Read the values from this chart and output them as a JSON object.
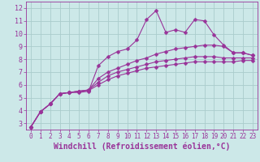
{
  "background_color": "#cce8e8",
  "grid_color": "#aacccc",
  "line_color": "#993399",
  "marker": "D",
  "marker_size": 2.5,
  "xlim": [
    -0.5,
    23.5
  ],
  "ylim": [
    2.5,
    12.5
  ],
  "yticks": [
    3,
    4,
    5,
    6,
    7,
    8,
    9,
    10,
    11,
    12
  ],
  "xticks": [
    0,
    1,
    2,
    3,
    4,
    5,
    6,
    7,
    8,
    9,
    10,
    11,
    12,
    13,
    14,
    15,
    16,
    17,
    18,
    19,
    20,
    21,
    22,
    23
  ],
  "xlabel": "Windchill (Refroidissement éolien,°C)",
  "series": [
    [
      2.7,
      3.9,
      4.5,
      5.3,
      5.4,
      5.4,
      5.5,
      7.5,
      8.2,
      8.6,
      8.8,
      9.5,
      11.1,
      11.8,
      10.1,
      10.3,
      10.1,
      11.1,
      11.0,
      9.9,
      9.1,
      8.5,
      8.5,
      8.3
    ],
    [
      2.7,
      3.9,
      4.5,
      5.3,
      5.4,
      5.5,
      5.6,
      6.5,
      7.0,
      7.3,
      7.6,
      7.9,
      8.1,
      8.4,
      8.6,
      8.8,
      8.9,
      9.0,
      9.1,
      9.1,
      9.0,
      8.5,
      8.5,
      8.3
    ],
    [
      2.7,
      3.9,
      4.5,
      5.3,
      5.4,
      5.5,
      5.6,
      6.2,
      6.7,
      7.0,
      7.2,
      7.4,
      7.6,
      7.8,
      7.9,
      8.0,
      8.1,
      8.2,
      8.2,
      8.2,
      8.1,
      8.1,
      8.1,
      8.1
    ],
    [
      2.7,
      3.9,
      4.5,
      5.3,
      5.4,
      5.5,
      5.55,
      6.0,
      6.4,
      6.7,
      6.9,
      7.1,
      7.3,
      7.4,
      7.5,
      7.6,
      7.7,
      7.8,
      7.8,
      7.8,
      7.8,
      7.8,
      7.9,
      7.9
    ]
  ],
  "tick_fontsize": 6,
  "axis_fontsize": 7,
  "linewidth": 0.8
}
